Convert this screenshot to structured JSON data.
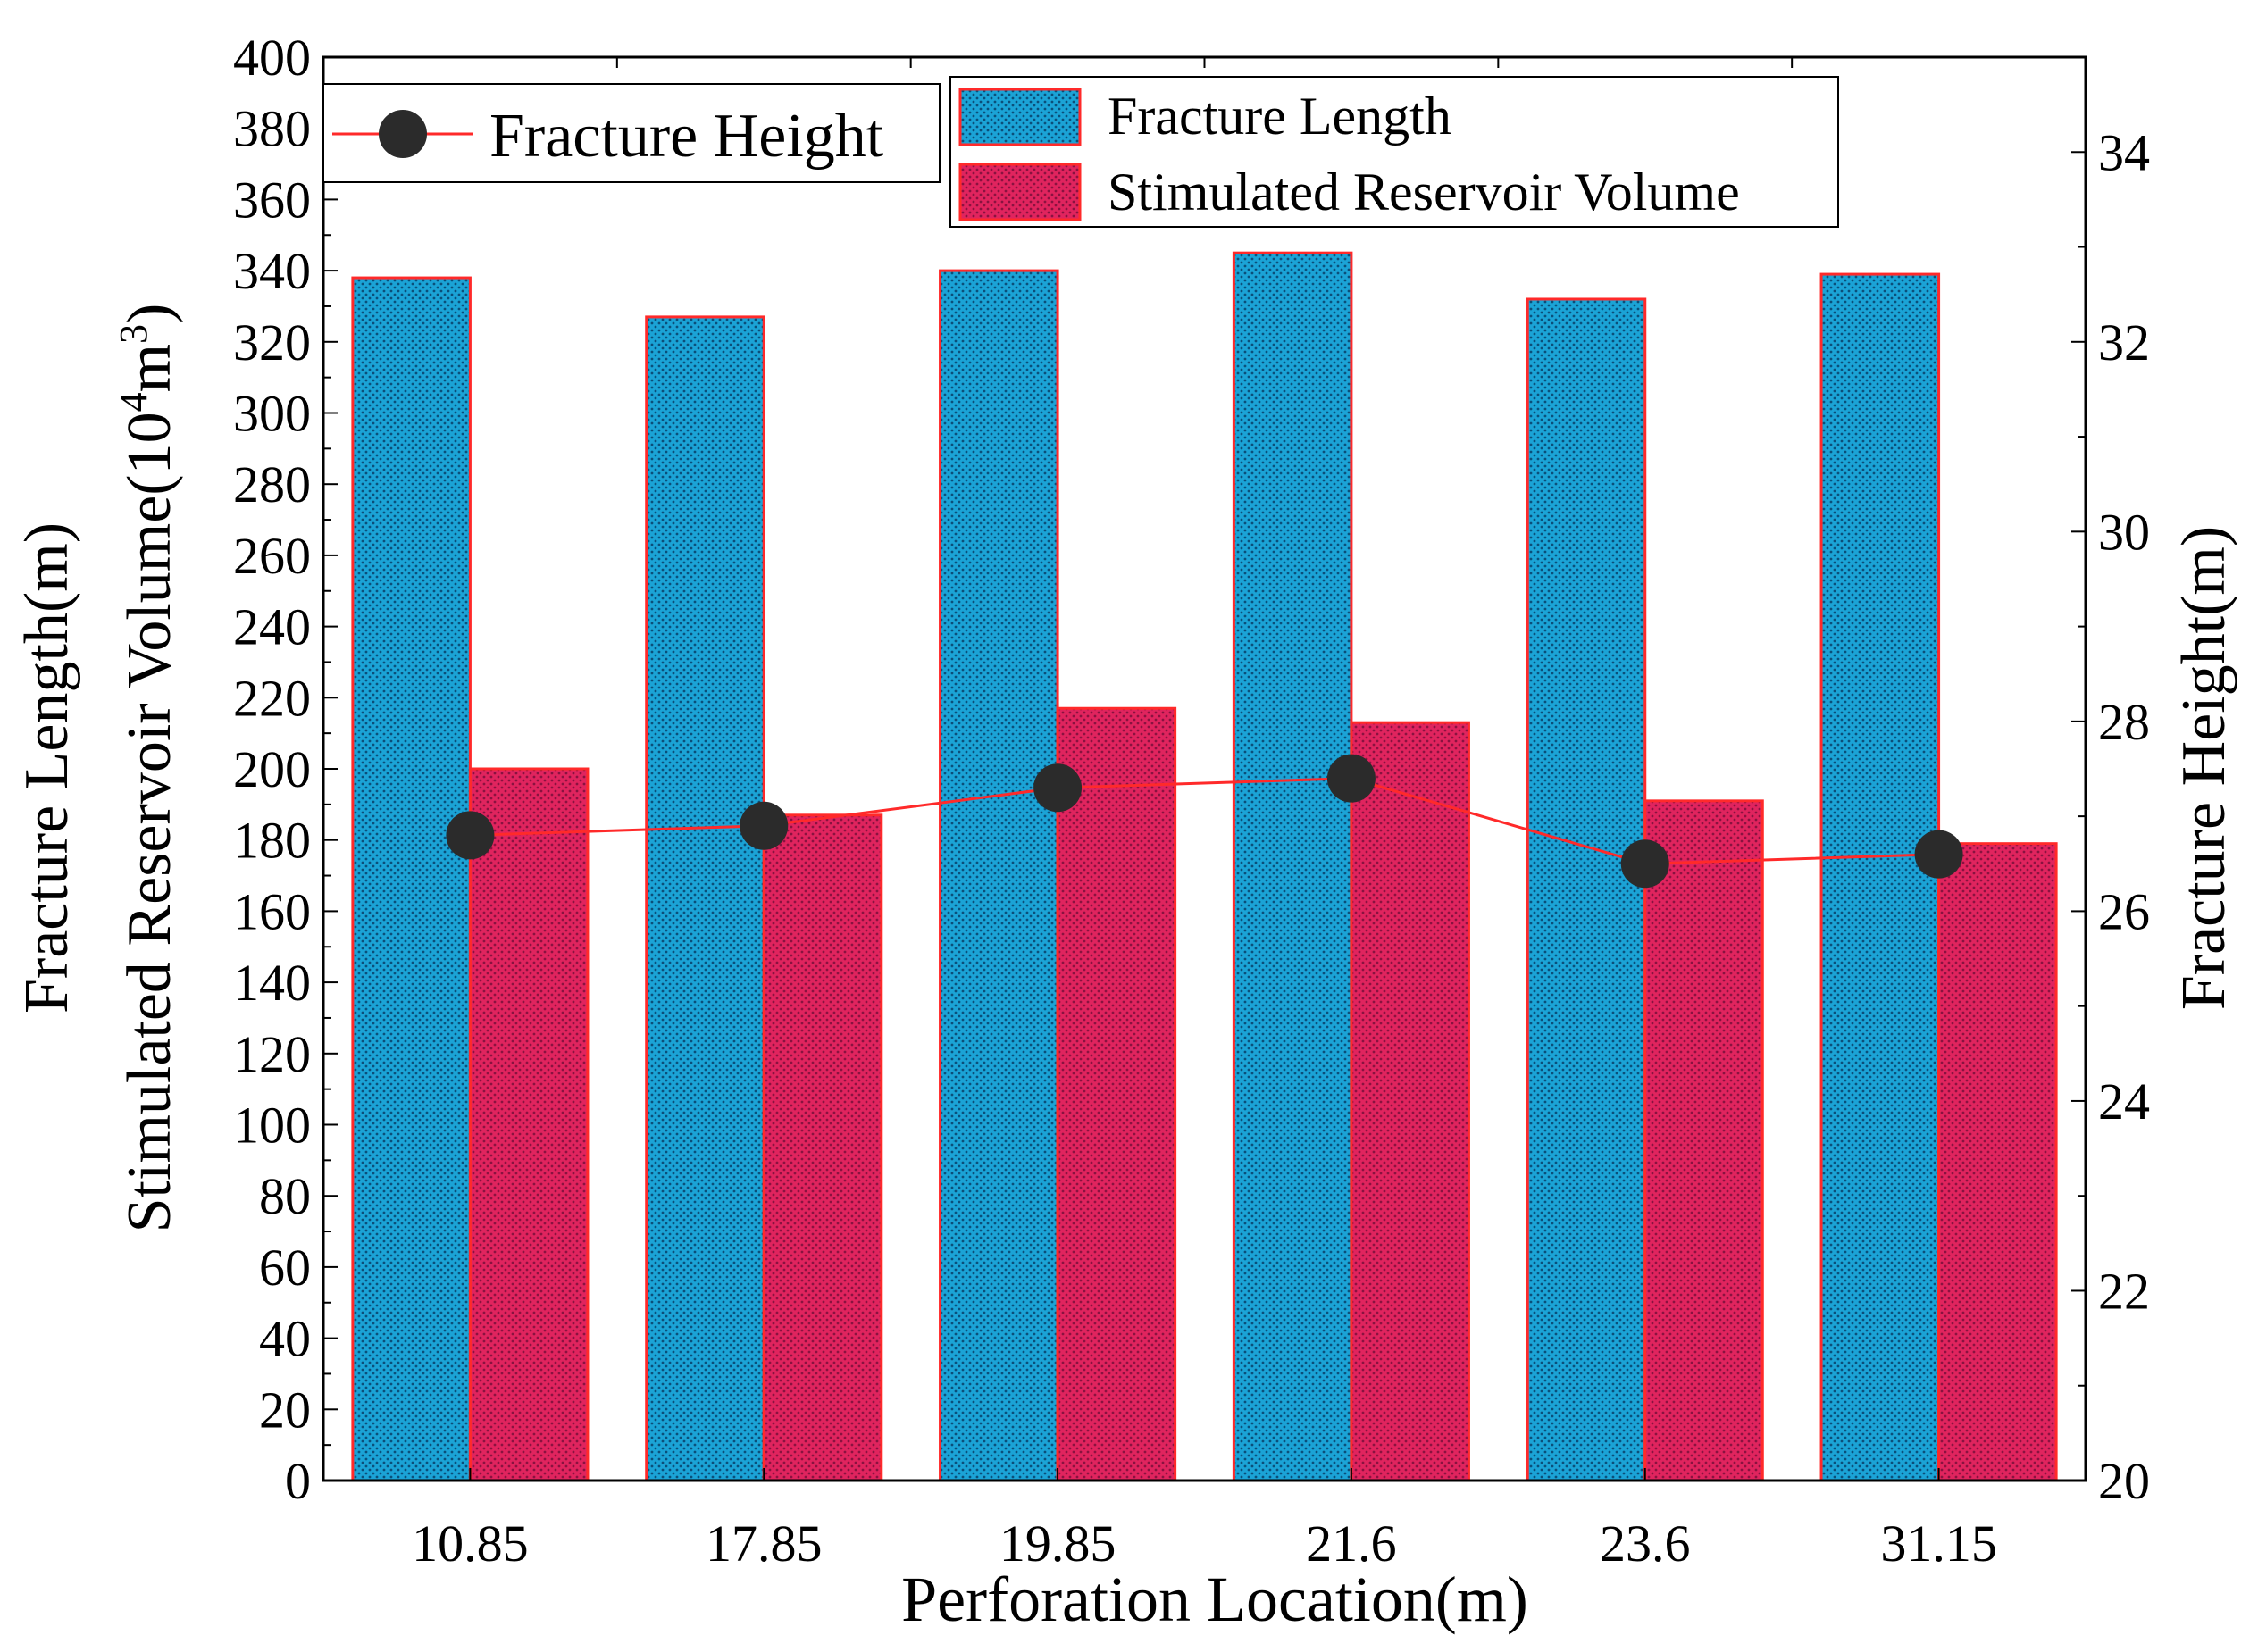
{
  "chart_data": {
    "type": "bar",
    "categories": [
      "10.85",
      "17.85",
      "19.85",
      "21.6",
      "23.6",
      "31.15"
    ],
    "series": [
      {
        "name": "Fracture Length",
        "axis": "left",
        "kind": "bar",
        "color": "#1ba3d6",
        "values": [
          338,
          327,
          340,
          345,
          332,
          339
        ]
      },
      {
        "name": "Stimulated Reservoir Volume",
        "axis": "left",
        "kind": "bar",
        "color": "#e0245e",
        "values": [
          200,
          187,
          217,
          213,
          191,
          179
        ]
      },
      {
        "name": "Fracture Height",
        "axis": "right",
        "kind": "line",
        "color": "#2b2b2b",
        "line_color": "#ff2a2a",
        "values": [
          26.8,
          26.9,
          27.3,
          27.4,
          26.5,
          26.6
        ]
      }
    ],
    "xlabel": "Perforation Location(m)",
    "ylabel_left_line1": "Fracture Length(m)",
    "ylabel_left_line2_main": "Stimulated Reservoir Volume(10",
    "ylabel_left_line2_sup1": "4",
    "ylabel_left_line2_mid": "m",
    "ylabel_left_line2_sup2": "3",
    "ylabel_left_line2_end": ")",
    "ylabel_right": "Fracture Height(m)",
    "ylim_left": [
      0,
      400
    ],
    "yticks_left": [
      "0",
      "20",
      "40",
      "60",
      "80",
      "100",
      "120",
      "140",
      "160",
      "180",
      "200",
      "220",
      "240",
      "260",
      "280",
      "300",
      "320",
      "340",
      "360",
      "380",
      "400"
    ],
    "ylim_right": [
      20,
      35
    ],
    "yticks_right": [
      "20",
      "22",
      "24",
      "26",
      "28",
      "30",
      "32",
      "34"
    ],
    "grid": false,
    "legend_line": "top-left",
    "legend_bars": "top-center"
  }
}
